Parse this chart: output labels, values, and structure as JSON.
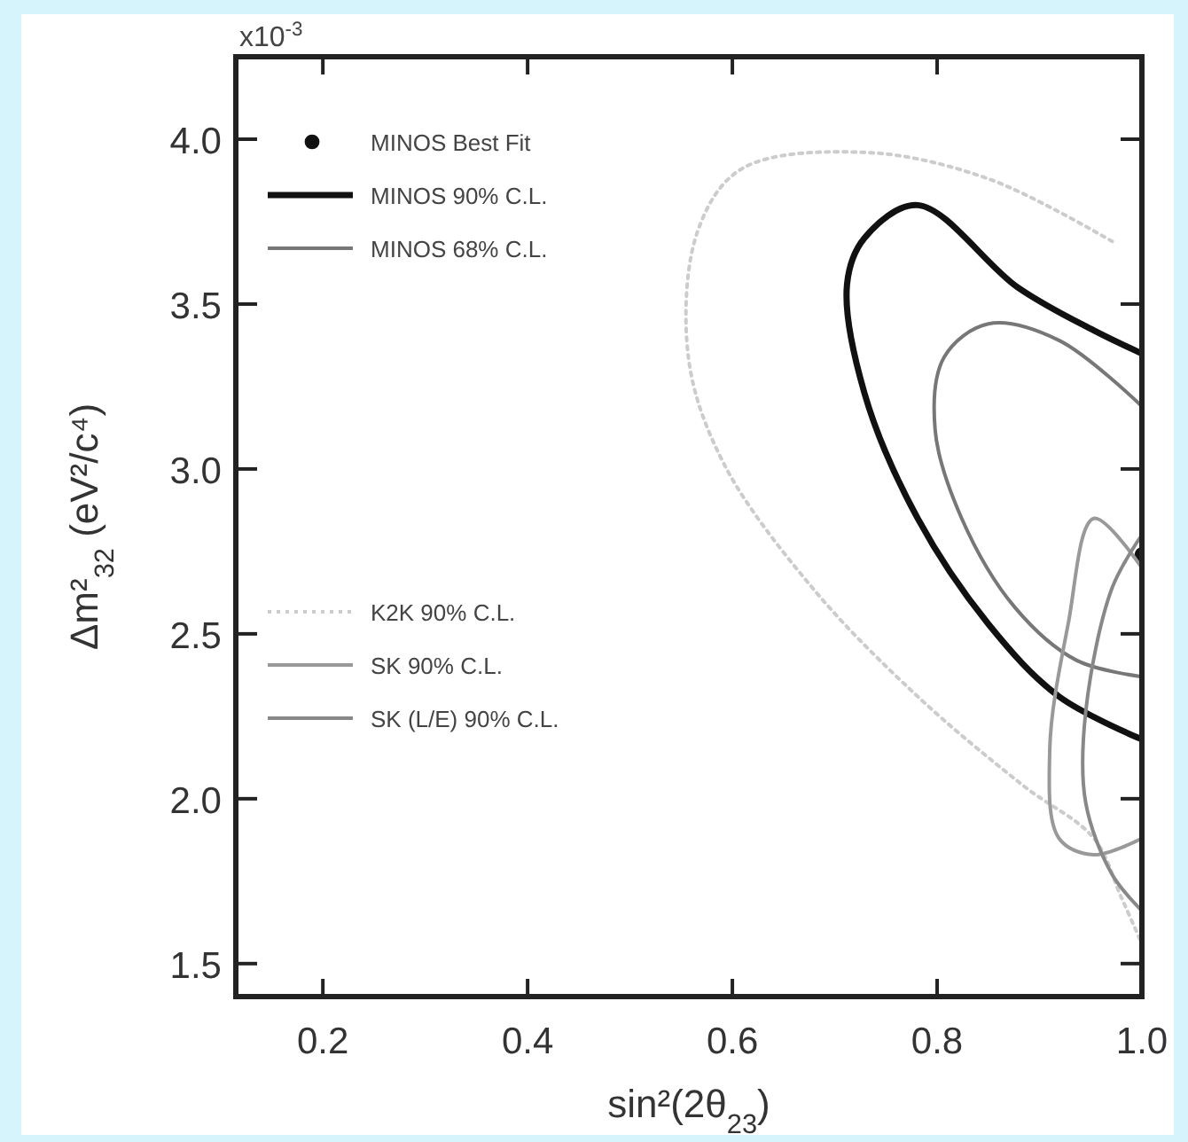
{
  "chart_data": {
    "type": "line",
    "xlabel": "sin²(2θ$_{23}$)",
    "ylabel": "Δm²$_{32}$ (eV²/c⁴)",
    "annotations": [
      "x10$^{-3}$"
    ],
    "xlim": [
      0.115,
      1.0
    ],
    "ylim": [
      1.4,
      4.25
    ],
    "xticks": [
      {
        "value": 0.2,
        "label": "0.2"
      },
      {
        "value": 0.4,
        "label": "0.4"
      },
      {
        "value": 0.6,
        "label": "0.6"
      },
      {
        "value": 0.8,
        "label": "0.8"
      },
      {
        "value": 1.0,
        "label": "1.0"
      }
    ],
    "yticks": [
      {
        "value": 1.5,
        "label": "1.5"
      },
      {
        "value": 2.0,
        "label": "2.0"
      },
      {
        "value": 2.5,
        "label": "2.5"
      },
      {
        "value": 3.0,
        "label": "3.0"
      },
      {
        "value": 3.5,
        "label": "3.5"
      },
      {
        "value": 4.0,
        "label": "4.0"
      }
    ],
    "grid": false,
    "legend": "left",
    "series": [
      {
        "name": "MINOS Best Fit",
        "type": "scatter",
        "marker": "circle",
        "color": "#111111",
        "x": [
          1.0
        ],
        "values": [
          2.74
        ]
      },
      {
        "name": "MINOS 90% C.L.",
        "color": "#111111",
        "line_style": "solid",
        "x": [
          1.0,
          0.953,
          0.879,
          0.781,
          0.729,
          0.712,
          0.729,
          0.781,
          0.85,
          0.919,
          1.0
        ],
        "values": [
          3.35,
          3.42,
          3.55,
          3.8,
          3.7,
          3.56,
          3.23,
          2.85,
          2.53,
          2.31,
          2.18
        ]
      },
      {
        "name": "MINOS 68% C.L.",
        "color": "#777777",
        "line_style": "solid",
        "x": [
          1.0,
          0.919,
          0.85,
          0.807,
          0.798,
          0.824,
          0.876,
          0.936,
          1.0
        ],
        "values": [
          3.19,
          3.39,
          3.44,
          3.34,
          3.12,
          2.85,
          2.58,
          2.42,
          2.37
        ]
      },
      {
        "name": "K2K 90% C.L.",
        "color": "#cccccc",
        "line_style": "dotted",
        "x": [
          0.971,
          0.85,
          0.729,
          0.609,
          0.566,
          0.557,
          0.591,
          0.678,
          0.781,
          0.884,
          0.953,
          0.98,
          1.0
        ],
        "values": [
          3.69,
          3.88,
          3.96,
          3.91,
          3.72,
          3.34,
          3.02,
          2.64,
          2.31,
          2.04,
          1.88,
          1.7,
          1.56
        ]
      },
      {
        "name": "SK 90% C.L.",
        "color": "#999999",
        "line_style": "solid",
        "x": [
          1.0,
          0.953,
          0.928,
          0.91,
          0.919,
          0.953,
          1.0
        ],
        "values": [
          2.7,
          2.85,
          2.53,
          2.15,
          1.88,
          1.83,
          1.88
        ]
      },
      {
        "name": "SK (L/E) 90% C.L.",
        "color": "#888888",
        "line_style": "solid",
        "x": [
          1.0,
          0.971,
          0.945,
          0.945,
          0.971,
          1.0
        ],
        "values": [
          2.8,
          2.64,
          2.26,
          1.99,
          1.77,
          1.66
        ]
      }
    ]
  }
}
